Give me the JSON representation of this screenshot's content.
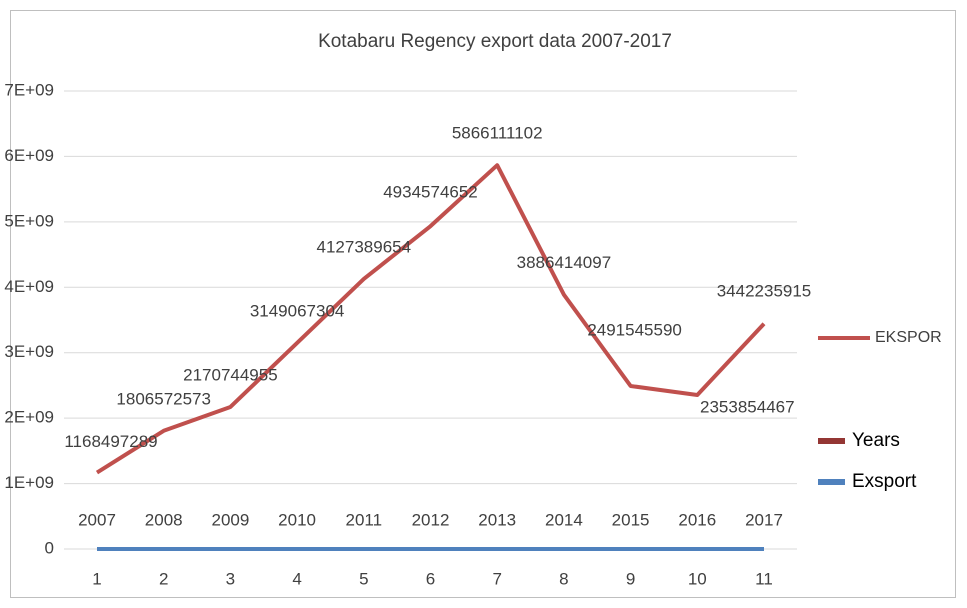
{
  "chart_data": {
    "type": "line",
    "title": "Kotabaru Regency export data 2007-2017",
    "categories": [
      "1",
      "2",
      "3",
      "4",
      "5",
      "6",
      "7",
      "8",
      "9",
      "10",
      "11"
    ],
    "series": [
      {
        "name": "EKSPOR",
        "color": "#c0504d",
        "values": [
          1168497289,
          1806572573,
          2170744955,
          3149067304,
          4127389654,
          4934574652,
          5866111102,
          3886414097,
          2491545590,
          2353854467,
          3442235915
        ],
        "show_labels": true
      },
      {
        "name": "Years",
        "color": "#943634",
        "values": [
          2007,
          2008,
          2009,
          2010,
          2011,
          2012,
          2013,
          2014,
          2015,
          2016,
          2017
        ],
        "show_labels": true
      },
      {
        "name": "Exsport",
        "color": "#4f81bd",
        "values": [
          0,
          0,
          0,
          0,
          0,
          0,
          0,
          0,
          0,
          0,
          0
        ],
        "show_labels": false
      }
    ],
    "ylim": [
      0,
      7000000000
    ],
    "yticks": [
      0,
      {
        "value": 1000000000,
        "label": "1E+09"
      },
      {
        "value": 2000000000,
        "label": "2E+09"
      },
      {
        "value": 3000000000,
        "label": "3E+09"
      },
      {
        "value": 4000000000,
        "label": "4E+09"
      },
      {
        "value": 5000000000,
        "label": "5E+09"
      },
      {
        "value": 6000000000,
        "label": "6E+09"
      },
      {
        "value": 7000000000,
        "label": "7E+09"
      }
    ],
    "grid": true,
    "legend": "right"
  }
}
